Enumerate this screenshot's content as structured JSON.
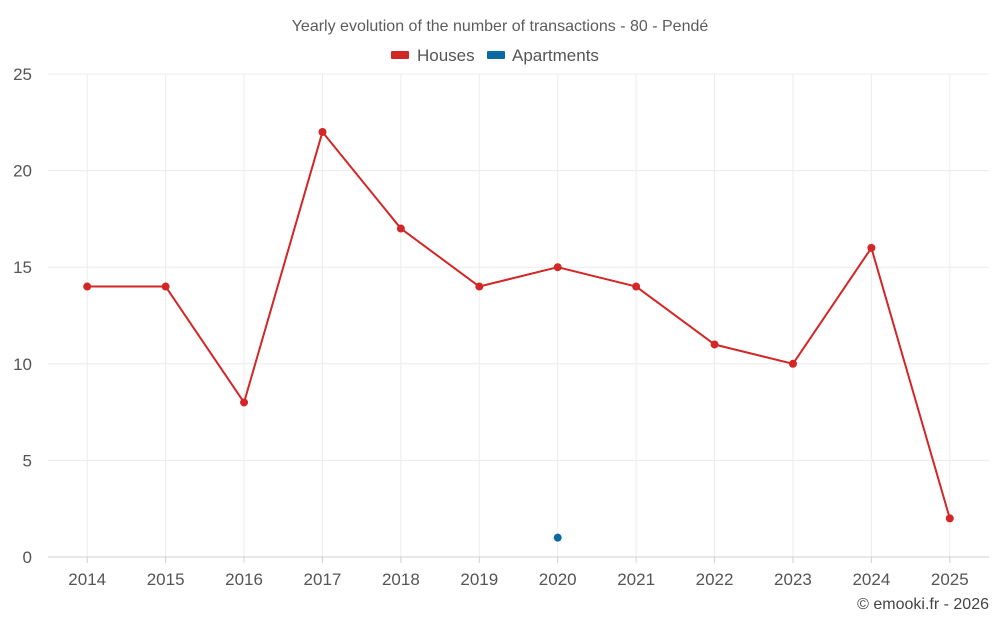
{
  "chart_data": {
    "type": "line",
    "title": "Yearly evolution of the number of transactions - 80 - Pendé",
    "categories": [
      "2014",
      "2015",
      "2016",
      "2017",
      "2018",
      "2019",
      "2020",
      "2021",
      "2022",
      "2023",
      "2024",
      "2025"
    ],
    "series": [
      {
        "name": "Houses",
        "color": "#d32626",
        "values": [
          14,
          14,
          8,
          22,
          17,
          14,
          15,
          14,
          11,
          10,
          16,
          2
        ]
      },
      {
        "name": "Apartments",
        "color": "#0a6aa1",
        "values": [
          null,
          null,
          null,
          null,
          null,
          null,
          1,
          null,
          null,
          null,
          null,
          null
        ]
      }
    ],
    "xlabel": "",
    "ylabel": "",
    "ylim": [
      0,
      25
    ],
    "yticks": [
      "0",
      "5",
      "10",
      "15",
      "20",
      "25"
    ],
    "grid": true,
    "legend_position": "top-center",
    "credit": "© emooki.fr - 2026"
  }
}
